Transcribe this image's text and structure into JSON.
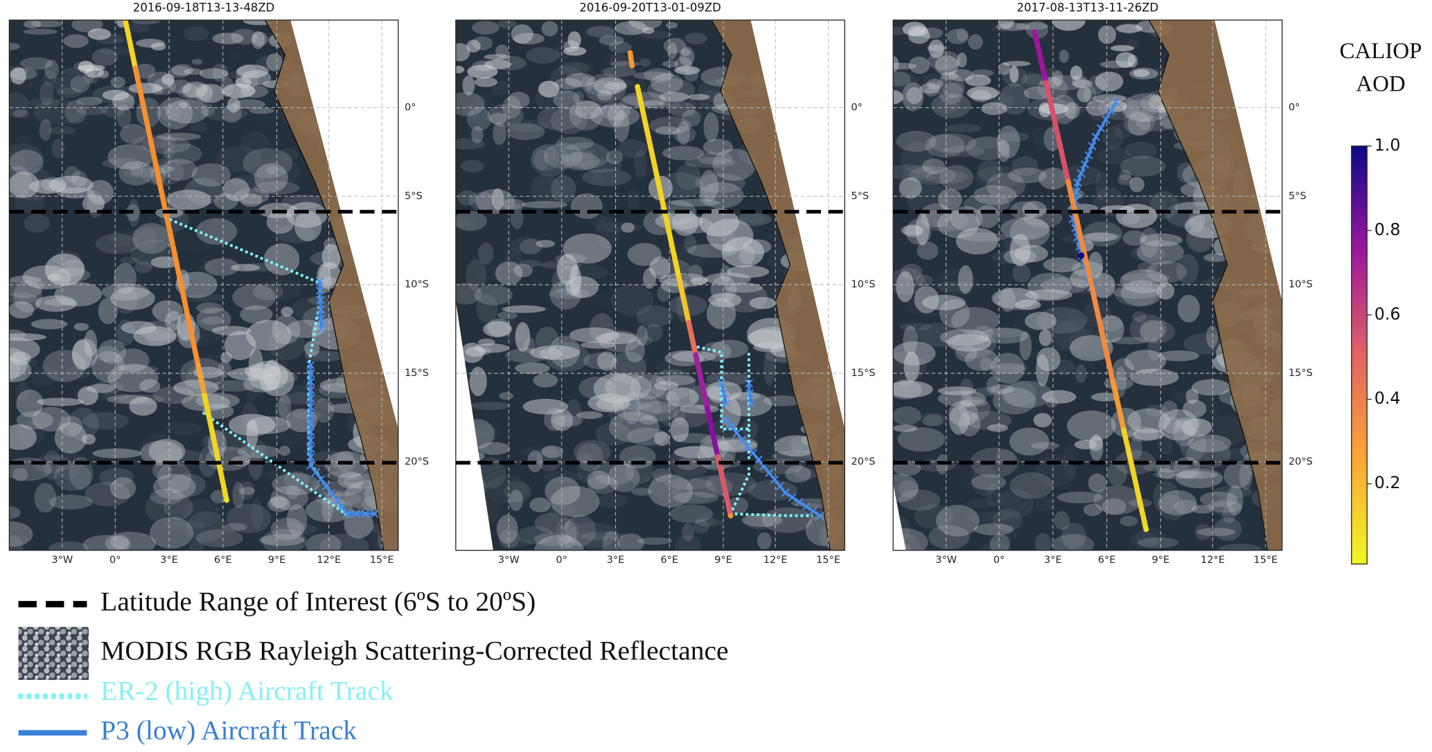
{
  "panels": [
    {
      "title": "2016-09-18T13-13-48ZD",
      "lon_ticks": [
        "3°W",
        "0°",
        "3°E",
        "6°E",
        "9°E",
        "12°E",
        "15°E"
      ],
      "lat_ticks": [
        "0°",
        "5°S",
        "10°S",
        "15°S",
        "20°S"
      ]
    },
    {
      "title": "2016-09-20T13-01-09ZD",
      "lon_ticks": [
        "3°W",
        "0°",
        "3°E",
        "6°E",
        "9°E",
        "12°E",
        "15°E"
      ],
      "lat_ticks": [
        "0°",
        "5°S",
        "10°S",
        "15°S",
        "20°S"
      ]
    },
    {
      "title": "2017-08-13T13-11-26ZD",
      "lon_ticks": [
        "3°W",
        "0°",
        "3°E",
        "6°E",
        "9°E",
        "12°E",
        "15°E"
      ],
      "lat_ticks": [
        "0°",
        "5°S",
        "10°S",
        "15°S",
        "20°S"
      ]
    }
  ],
  "colorbar": {
    "title_lines": [
      "CALIOP",
      "AOD"
    ],
    "range": [
      0.01,
      1.0
    ],
    "ticks": [
      0.2,
      0.4,
      0.6,
      0.8,
      {
        "value": 1.0,
        "label": "1.0"
      }
    ]
  },
  "legend": [
    {
      "label": "Latitude Range of Interest (6ºS to 20ºS)"
    },
    {
      "label": "MODIS RGB Rayleigh Scattering-Corrected Reflectance"
    },
    {
      "label": "ER-2 (high) Aircraft Track"
    },
    {
      "label": "P3 (low) Aircraft Track"
    }
  ]
}
